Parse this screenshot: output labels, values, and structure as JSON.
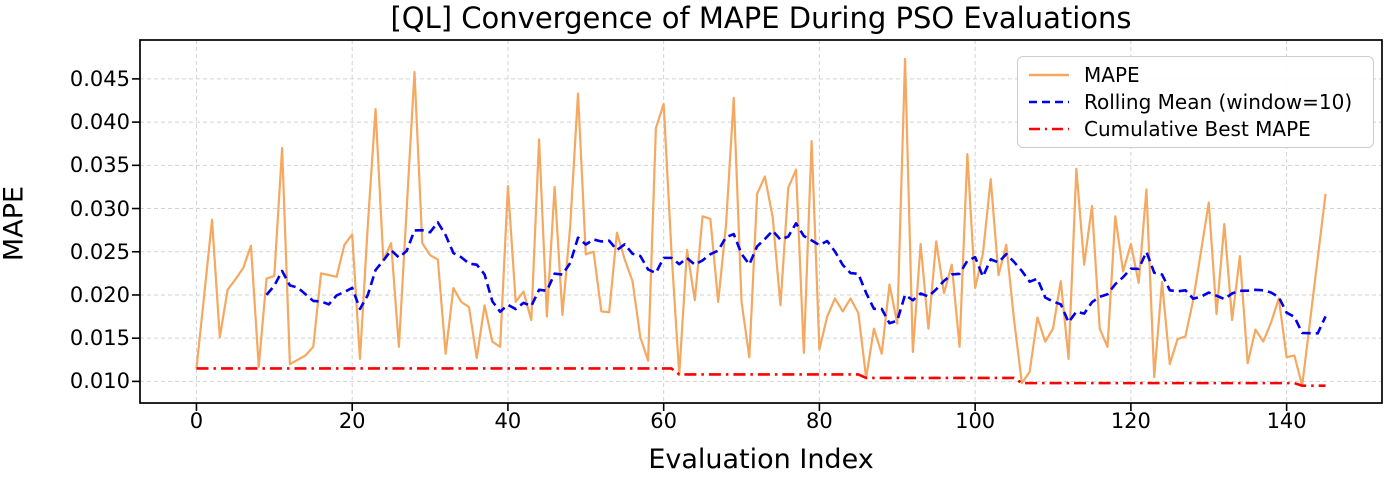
{
  "chart_data": {
    "type": "line",
    "title": "[QL] Convergence of MAPE During PSO Evaluations",
    "xlabel": "Evaluation Index",
    "ylabel": "MAPE",
    "x_start": 0,
    "x_step": 1,
    "n_points": 146,
    "xlim": [
      -7.25,
      152.25
    ],
    "ylim": [
      0.0075,
      0.0495
    ],
    "xticks": [
      0,
      20,
      40,
      60,
      80,
      100,
      120,
      140
    ],
    "yticks": [
      0.01,
      0.015,
      0.02,
      0.025,
      0.03,
      0.035,
      0.04,
      0.045
    ],
    "grid": true,
    "grid_style": "dashed",
    "legend_position": "upper right",
    "series": [
      {
        "name": "MAPE",
        "color": "#f4a860",
        "style": "solid",
        "line_width": 2.2,
        "values": [
          0.0115,
          0.02,
          0.0287,
          0.0151,
          0.0206,
          0.0218,
          0.0231,
          0.0257,
          0.0117,
          0.0219,
          0.0222,
          0.037,
          0.012,
          0.0125,
          0.013,
          0.014,
          0.0225,
          0.0223,
          0.0221,
          0.0258,
          0.027,
          0.0126,
          0.028,
          0.0415,
          0.024,
          0.026,
          0.014,
          0.03,
          0.0458,
          0.026,
          0.0246,
          0.0241,
          0.0132,
          0.0208,
          0.0192,
          0.0186,
          0.0127,
          0.0188,
          0.0146,
          0.014,
          0.0326,
          0.0192,
          0.0204,
          0.0171,
          0.038,
          0.0175,
          0.0325,
          0.0177,
          0.028,
          0.0433,
          0.0247,
          0.025,
          0.0181,
          0.018,
          0.0272,
          0.0241,
          0.0216,
          0.0151,
          0.0124,
          0.0393,
          0.0421,
          0.025,
          0.0108,
          0.0252,
          0.0194,
          0.0291,
          0.0288,
          0.0192,
          0.028,
          0.0428,
          0.0192,
          0.0128,
          0.0317,
          0.0337,
          0.029,
          0.0188,
          0.0324,
          0.0345,
          0.0133,
          0.0378,
          0.0137,
          0.0175,
          0.0196,
          0.0181,
          0.0196,
          0.0179,
          0.0104,
          0.0161,
          0.0132,
          0.0212,
          0.0167,
          0.0473,
          0.0134,
          0.0259,
          0.0161,
          0.0262,
          0.0202,
          0.0235,
          0.014,
          0.0363,
          0.0208,
          0.0248,
          0.0334,
          0.0223,
          0.0258,
          0.0171,
          0.0098,
          0.0111,
          0.0174,
          0.0146,
          0.0161,
          0.0216,
          0.0126,
          0.0346,
          0.0235,
          0.0303,
          0.0161,
          0.014,
          0.0291,
          0.0227,
          0.0259,
          0.0214,
          0.0322,
          0.0105,
          0.0215,
          0.012,
          0.0149,
          0.0152,
          0.0194,
          0.025,
          0.0307,
          0.0178,
          0.0282,
          0.0171,
          0.0245,
          0.0121,
          0.016,
          0.0146,
          0.0168,
          0.0196,
          0.0128,
          0.013,
          0.0095,
          0.0169,
          0.0243,
          0.0317
        ]
      },
      {
        "name": "Rolling Mean (window=10)",
        "color": "#0000ee",
        "style": "dashed",
        "line_width": 2.6,
        "derived_from": "MAPE",
        "derivation": "rolling_mean_window_10"
      },
      {
        "name": "Cumulative Best MAPE",
        "color": "#ff0000",
        "style": "dashdot",
        "line_width": 2.6,
        "derived_from": "MAPE",
        "derivation": "cumulative_min",
        "step_points": [
          {
            "index": 0,
            "value": 0.0115
          },
          {
            "index": 62,
            "value": 0.0108
          },
          {
            "index": 86,
            "value": 0.0104
          },
          {
            "index": 106,
            "value": 0.0098
          },
          {
            "index": 142,
            "value": 0.0095
          }
        ]
      }
    ]
  }
}
